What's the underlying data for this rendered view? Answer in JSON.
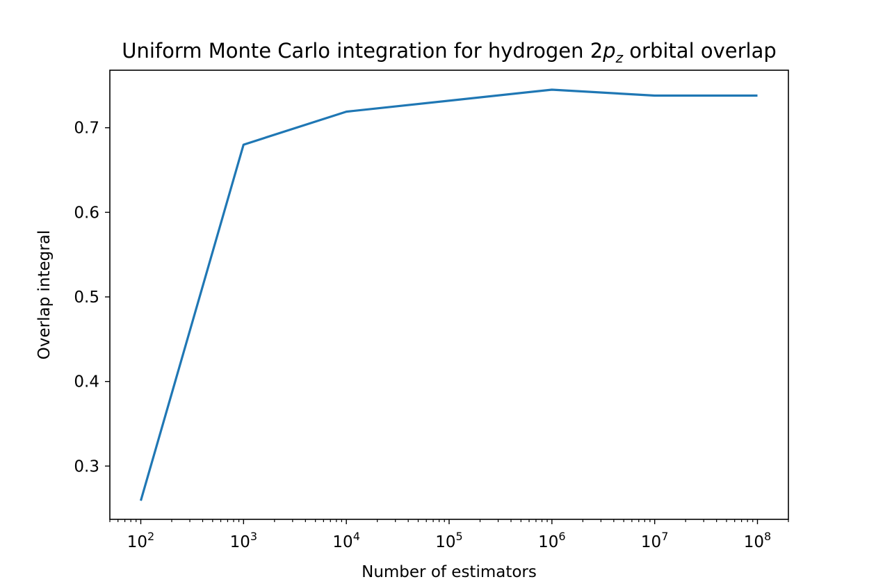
{
  "chart_data": {
    "type": "line",
    "title": {
      "prefix": "Uniform Monte Carlo integration for hydrogen 2",
      "math_var": "p",
      "math_sub": "z",
      "suffix": " orbital overlap"
    },
    "xlabel": "Number of estimators",
    "ylabel": "Overlap integral",
    "x_scale": "log",
    "x": [
      100,
      1000,
      10000,
      1000000,
      10000000,
      100000000
    ],
    "xlim": [
      50,
      200000000
    ],
    "ylim": [
      0.237,
      0.768
    ],
    "x_ticks": [
      {
        "value": 100,
        "base": "10",
        "exp": "2"
      },
      {
        "value": 1000,
        "base": "10",
        "exp": "3"
      },
      {
        "value": 10000,
        "base": "10",
        "exp": "4"
      },
      {
        "value": 100000,
        "base": "10",
        "exp": "5"
      },
      {
        "value": 1000000,
        "base": "10",
        "exp": "6"
      },
      {
        "value": 10000000,
        "base": "10",
        "exp": "7"
      },
      {
        "value": 100000000,
        "base": "10",
        "exp": "8"
      }
    ],
    "y_ticks": [
      {
        "value": 0.3,
        "label": "0.3"
      },
      {
        "value": 0.4,
        "label": "0.4"
      },
      {
        "value": 0.5,
        "label": "0.5"
      },
      {
        "value": 0.6,
        "label": "0.6"
      },
      {
        "value": 0.7,
        "label": "0.7"
      }
    ],
    "series": [
      {
        "values": [
          0.259,
          0.68,
          0.719,
          0.745,
          0.738,
          0.738
        ],
        "color": "#1f77b4"
      }
    ],
    "grid": false,
    "legend": "none"
  }
}
